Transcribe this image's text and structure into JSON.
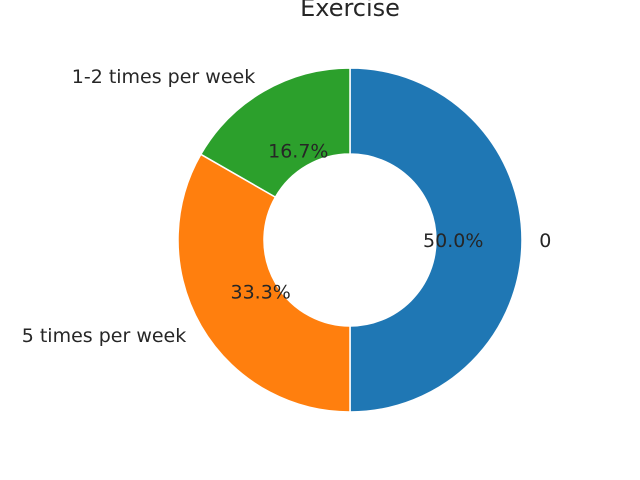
{
  "chart_data": {
    "type": "pie",
    "title": "Exercise",
    "donut": true,
    "start_angle_deg": 90,
    "direction": "clockwise",
    "slices": [
      {
        "label": "0",
        "value": 50.0,
        "pct_label": "50.0%",
        "color": "#1f77b4"
      },
      {
        "label": "5 times per week",
        "value": 33.3,
        "pct_label": "33.3%",
        "color": "#ff7f0e"
      },
      {
        "label": "1-2 times per week",
        "value": 16.7,
        "pct_label": "16.7%",
        "color": "#2ca02c"
      }
    ]
  }
}
